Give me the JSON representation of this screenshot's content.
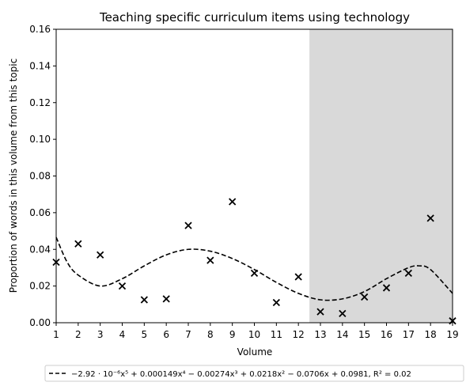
{
  "chart_data": {
    "type": "scatter",
    "title": "Teaching specific curriculum items using technology",
    "xlabel": "Volume",
    "ylabel": "Proportion of words in this volume from this topic",
    "xlim": [
      1,
      19
    ],
    "ylim": [
      0,
      0.16
    ],
    "xticks": [
      1,
      2,
      3,
      4,
      5,
      6,
      7,
      8,
      9,
      10,
      11,
      12,
      13,
      14,
      15,
      16,
      17,
      18,
      19
    ],
    "yticks": [
      {
        "value": 0,
        "label": "0.00"
      },
      {
        "value": 0.02,
        "label": "0.02"
      },
      {
        "value": 0.04,
        "label": "0.04"
      },
      {
        "value": 0.06,
        "label": "0.06"
      },
      {
        "value": 0.08,
        "label": "0.08"
      },
      {
        "value": 0.1,
        "label": "0.10"
      },
      {
        "value": 0.12,
        "label": "0.12"
      },
      {
        "value": 0.14,
        "label": "0.14"
      },
      {
        "value": 0.16,
        "label": "0.16"
      }
    ],
    "shaded_region": [
      12.5,
      19
    ],
    "shade_color": "#d9d9d9",
    "points": {
      "color": "#000000",
      "x": [
        1,
        2,
        3,
        4,
        5,
        6,
        7,
        8,
        9,
        10,
        11,
        12,
        13,
        14,
        15,
        16,
        17,
        18,
        19
      ],
      "values": [
        0.033,
        0.043,
        0.037,
        0.02,
        0.0125,
        0.013,
        0.053,
        0.034,
        0.066,
        0.027,
        0.011,
        0.025,
        0.006,
        0.005,
        0.014,
        0.019,
        0.027,
        0.057,
        0.001
      ]
    },
    "series": [
      {
        "name": "−2.92 · 10⁻⁶x⁵ + 0.000149x⁴ − 0.00274x³ + 0.0218x² − 0.0706x + 0.0981, R² = 0.02",
        "color": "#000000",
        "x": [
          1,
          1.5,
          2,
          3,
          4,
          5,
          6,
          7,
          8,
          9,
          10,
          11,
          12,
          13,
          14,
          15,
          16,
          17,
          17.5,
          18,
          19
        ],
        "values": [
          0.0466,
          0.033,
          0.026,
          0.02,
          0.024,
          0.031,
          0.037,
          0.04,
          0.039,
          0.035,
          0.029,
          0.022,
          0.016,
          0.0125,
          0.013,
          0.017,
          0.024,
          0.03,
          0.031,
          0.029,
          0.016
        ]
      }
    ]
  }
}
